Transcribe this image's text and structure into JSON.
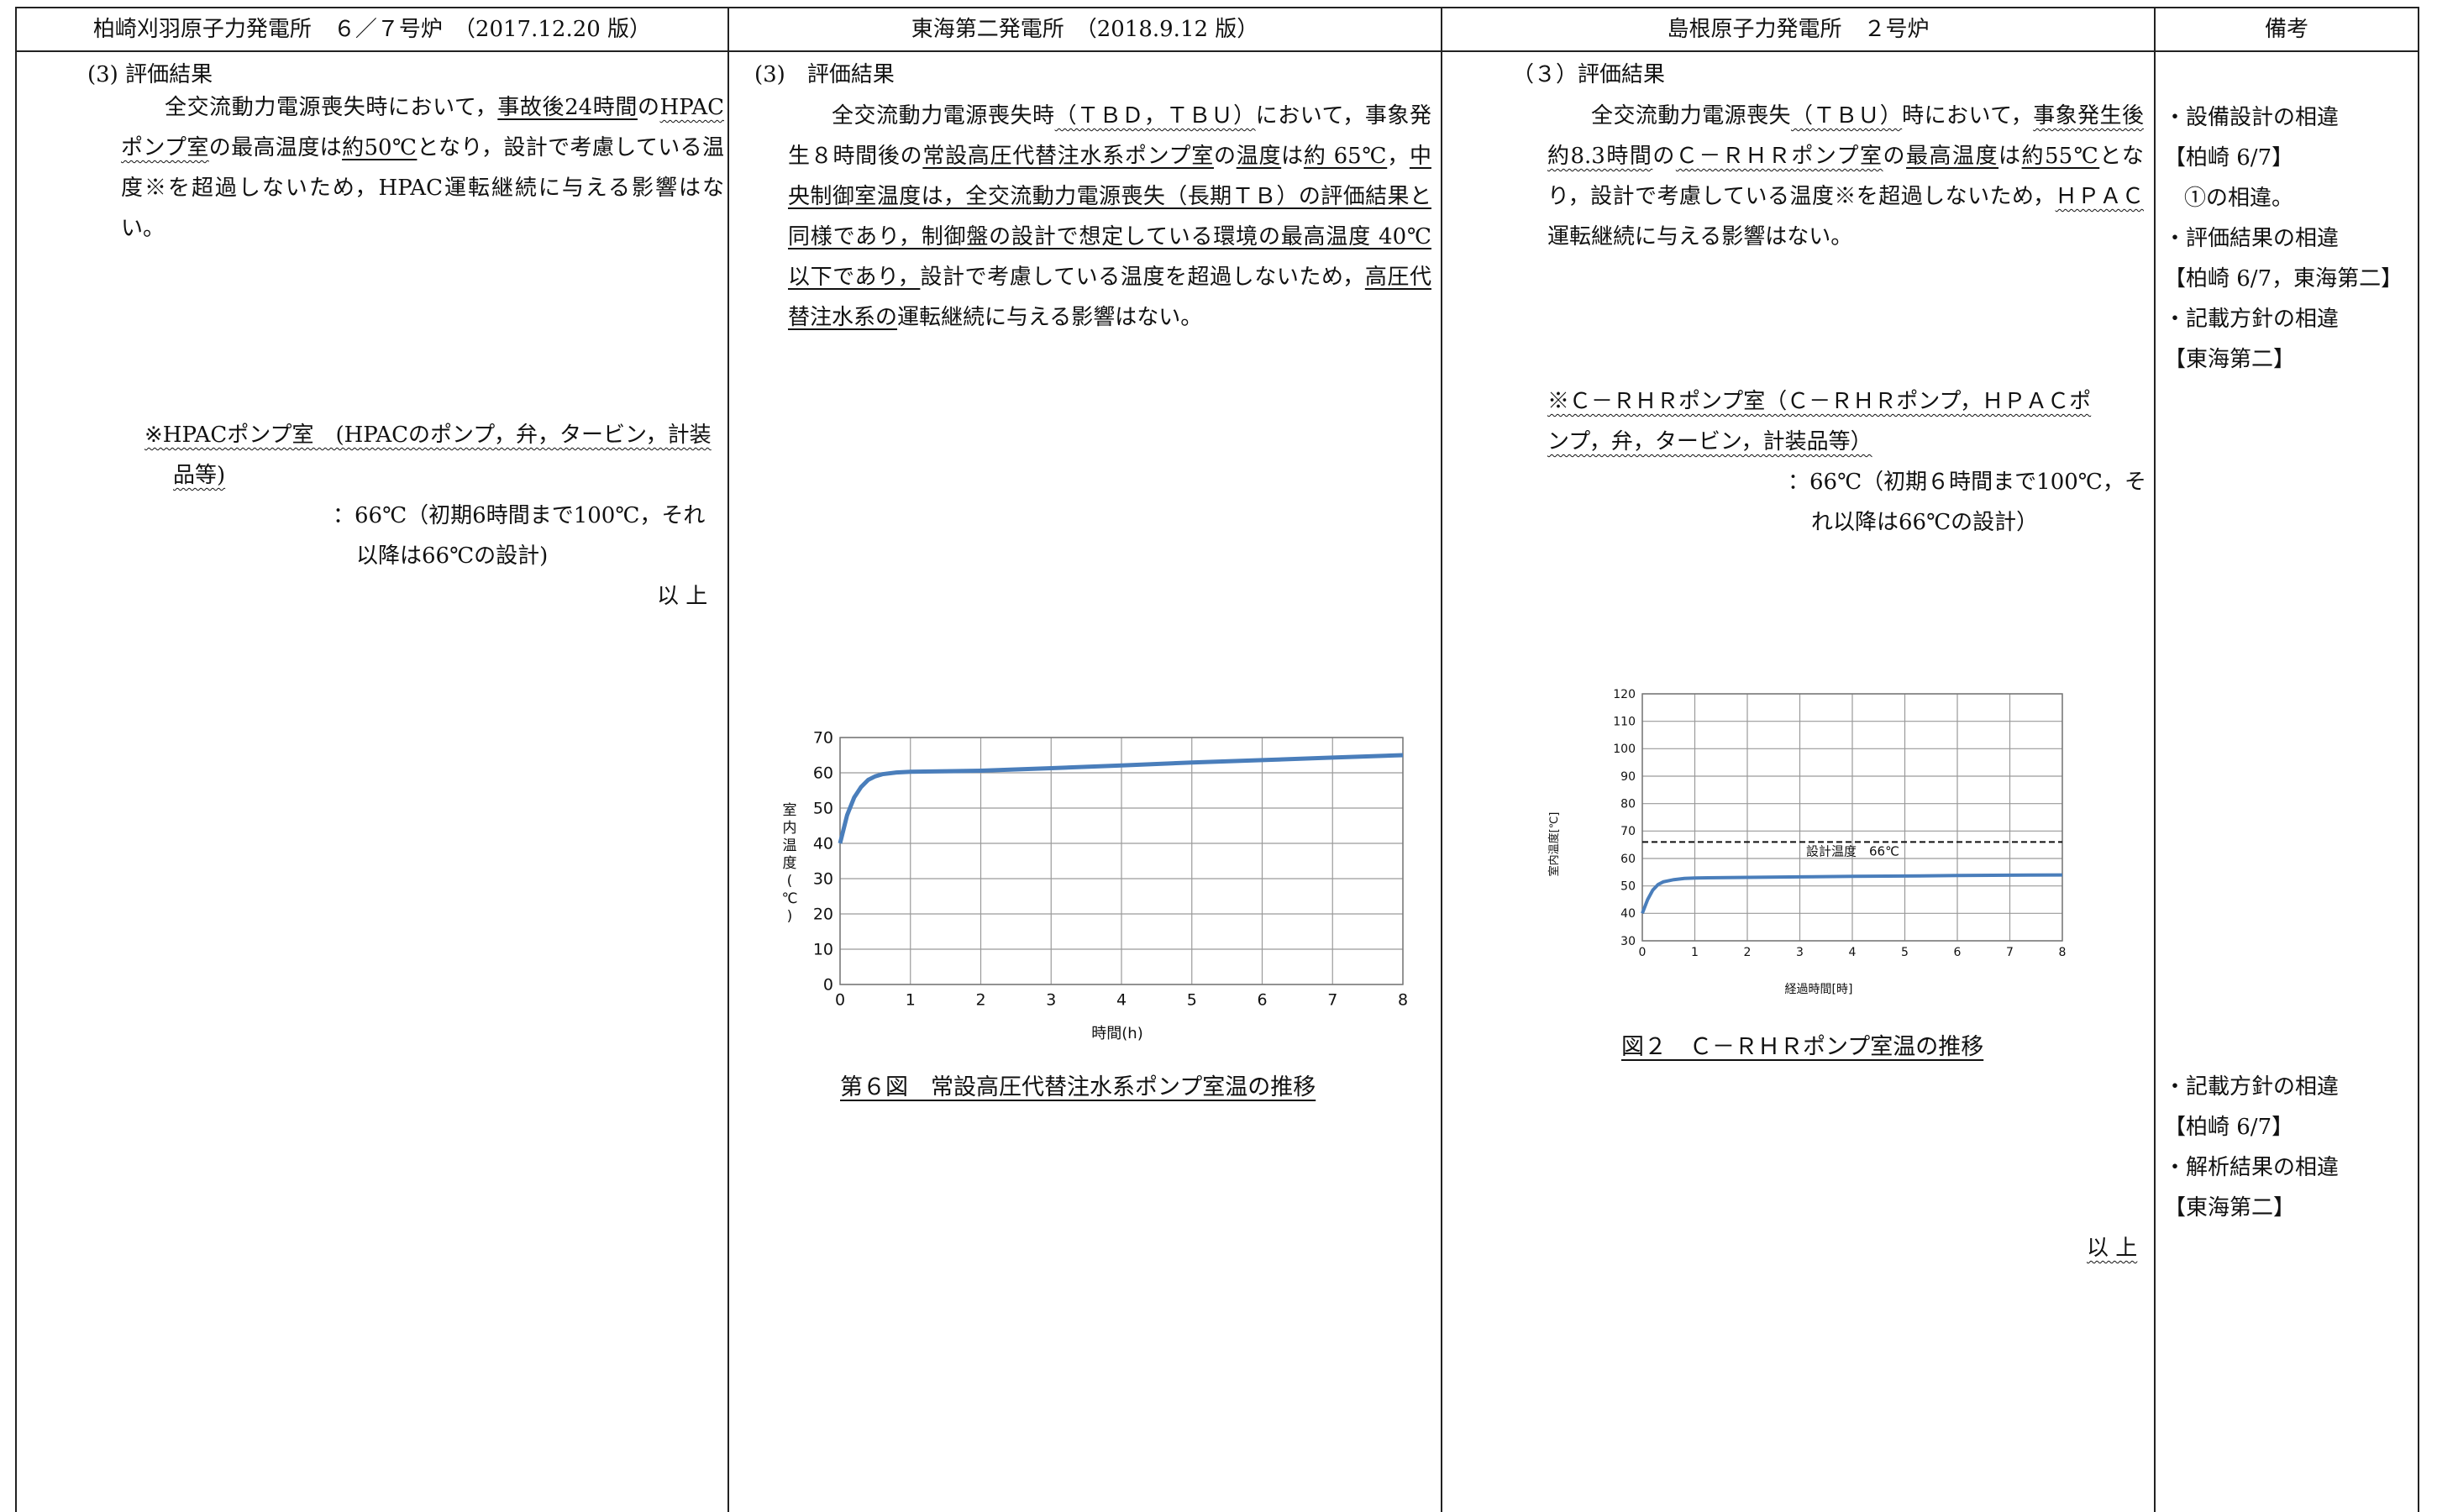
{
  "headers": {
    "col1": "柏崎刈羽原子力発電所　６／７号炉　（2017.12.20 版）",
    "col2": "東海第二発電所　（2018.9.12 版）",
    "col3": "島根原子力発電所　２号炉",
    "col4": "備考"
  },
  "col1": {
    "section": "(3)  評価結果",
    "p1": "全交流動力電源喪失時において，",
    "p2": "事故後24時間",
    "p3": "の",
    "p4": "HPACポンプ室",
    "p5": "の最高温度は",
    "p6": "約50℃",
    "p7": "となり，設計で考慮している温度※を超過しないため，HPAC運転継続に与える影響はない。",
    "note_line1": "※HPACポンプ室　(HPACのポンプ，弁，タービン，計装",
    "note_line2": "品等)",
    "note_val1": "：66℃（初期6時間まで100℃，それ",
    "note_val2": "以降は66℃の設計)",
    "end": "以 上"
  },
  "col2": {
    "section": "(3)　評価結果",
    "p1": "全交流動力電源喪失時",
    "p2": "（ＴＢＤ，ＴＢＵ）",
    "p3": "において，事象発生８時間後の",
    "p4": "常設高圧代替注水系ポンプ室",
    "p5": "の",
    "p6": "温度",
    "p7": "は",
    "p8": "約 65℃",
    "p9": "，",
    "p10": "中央制御室温度は，全交流動力電源喪失（長期ＴＢ）の評価結果と同様であり，制御盤の設計で想定している環境の最高温度 40℃以下であり，",
    "p11": "設計で考慮している温度を超過しないため，",
    "p12": "高圧代替注水系の",
    "p13": "運転継続に与える影響はない。",
    "caption": "第６図　常設高圧代替注水系ポンプ室温の推移"
  },
  "col3": {
    "section": "（３）評価結果",
    "p1": "全交流動力電源喪失",
    "p2": "（ＴＢＵ）",
    "p3": "時において，",
    "p4": "事象発生後約8.3時間",
    "p5": "の",
    "p6": "Ｃ－ＲＨＲポンプ室",
    "p7": "の",
    "p8": "最高温度",
    "p9": "は",
    "p10": "約55℃",
    "p11": "となり，設計で考慮している温度※を超過しないため，",
    "p12": "ＨＰＡＣ",
    "p13": "運転継続に与える影響はない。",
    "note_line1": "※Ｃ－ＲＨＲポンプ室（Ｃ－ＲＨＲポンプ，ＨＰＡＣポ",
    "note_line2": "ンプ，弁，タービン，計装品等）",
    "note_val1": "：66℃（初期６時間まで100℃，そ",
    "note_val2": "れ以降は66℃の設計）",
    "caption": "図２　Ｃ－ＲＨＲポンプ室温の推移",
    "end": "以 上"
  },
  "col4": {
    "r1": "・設備設計の相違",
    "r2": "【柏崎 6/7】",
    "r3": "①の相違。",
    "r4": "・評価結果の相違",
    "r5": "【柏崎 6/7，東海第二】",
    "r6": "・記載方針の相違",
    "r7": "【東海第二】",
    "r8": "・記載方針の相違",
    "r9": "【柏崎 6/7】",
    "r10": "・解析結果の相違",
    "r11": "【東海第二】"
  },
  "chart_data": [
    {
      "type": "line",
      "xlabel": "時間(h)",
      "ylabel": "室内温度(℃)",
      "xlim": [
        0,
        8
      ],
      "ylim": [
        0,
        70
      ],
      "xticks": [
        0,
        1,
        2,
        3,
        4,
        5,
        6,
        7,
        8
      ],
      "yticks": [
        0,
        10,
        20,
        30,
        40,
        50,
        60,
        70
      ],
      "grid": true,
      "color": "#4a7ebb",
      "x": [
        0,
        0.1,
        0.2,
        0.3,
        0.4,
        0.5,
        0.6,
        0.8,
        1.0,
        2,
        3,
        4,
        5,
        6,
        7,
        8
      ],
      "y": [
        40,
        48,
        53,
        56,
        58,
        59,
        59.6,
        60.1,
        60.3,
        60.6,
        61.3,
        62.1,
        62.9,
        63.6,
        64.3,
        65
      ]
    },
    {
      "type": "line",
      "xlabel": "経過時間[時]",
      "ylabel": "室内温度[℃]",
      "xlim": [
        0,
        8
      ],
      "ylim": [
        30,
        120
      ],
      "xticks": [
        0,
        1,
        2,
        3,
        4,
        5,
        6,
        7,
        8
      ],
      "yticks": [
        30,
        40,
        50,
        60,
        70,
        80,
        90,
        100,
        110,
        120
      ],
      "grid": true,
      "color": "#4a7ebb",
      "design_temp": 66,
      "design_label": "設計温度　66℃",
      "x": [
        0,
        0.1,
        0.2,
        0.3,
        0.4,
        0.6,
        0.8,
        1.0,
        2,
        3,
        4,
        5,
        6,
        7,
        8
      ],
      "y": [
        40,
        45,
        48.5,
        50.5,
        51.5,
        52.3,
        52.7,
        52.9,
        53.1,
        53.3,
        53.5,
        53.6,
        53.8,
        53.9,
        54
      ]
    }
  ]
}
